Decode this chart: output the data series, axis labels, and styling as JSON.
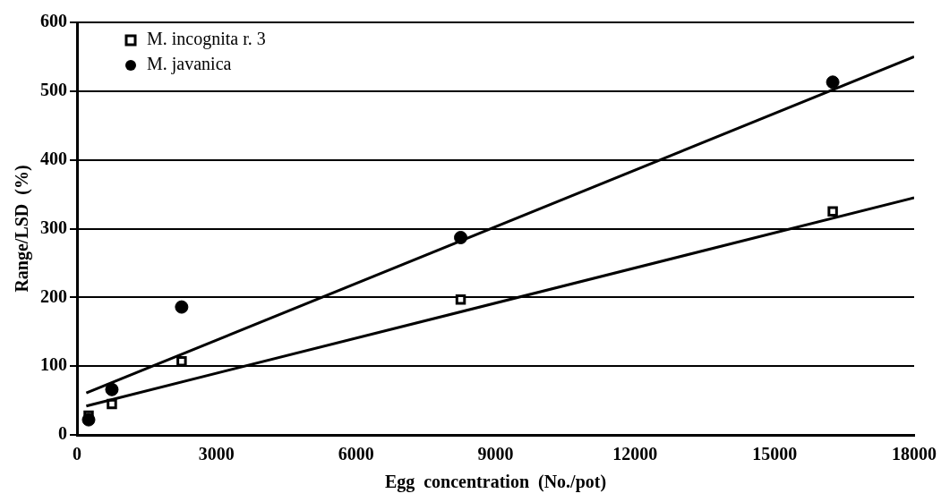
{
  "chart_data": {
    "type": "scatter",
    "xlabel": "Egg  concentration  (No./pot)",
    "ylabel": "Range/LSD  (%)",
    "xlim": [
      0,
      18000
    ],
    "xticks": [
      0,
      3000,
      6000,
      9000,
      12000,
      15000,
      18000
    ],
    "ylim": [
      0,
      600
    ],
    "yticks": [
      0,
      100,
      200,
      300,
      400,
      500,
      600
    ],
    "grid": "y",
    "legend": "top left",
    "series": [
      {
        "name": "M. incognita r. 3",
        "color": "#000000",
        "marker": "square",
        "x": [
          250,
          750,
          2250,
          8250,
          16250
        ],
        "values": [
          28,
          45,
          107,
          197,
          325
        ]
      },
      {
        "name": "M. javanica",
        "color": "#000000",
        "marker": "circle",
        "x": [
          250,
          750,
          2250,
          8250,
          16250
        ],
        "values": [
          22,
          66,
          186,
          287,
          513
        ]
      },
      {
        "type": "line",
        "color": "#000000",
        "marker": "none",
        "x": [
          200,
          18000
        ],
        "values": [
          42,
          345
        ]
      },
      {
        "type": "line",
        "color": "#000000",
        "marker": "none",
        "x": [
          200,
          18000
        ],
        "values": [
          61,
          550
        ]
      }
    ]
  }
}
